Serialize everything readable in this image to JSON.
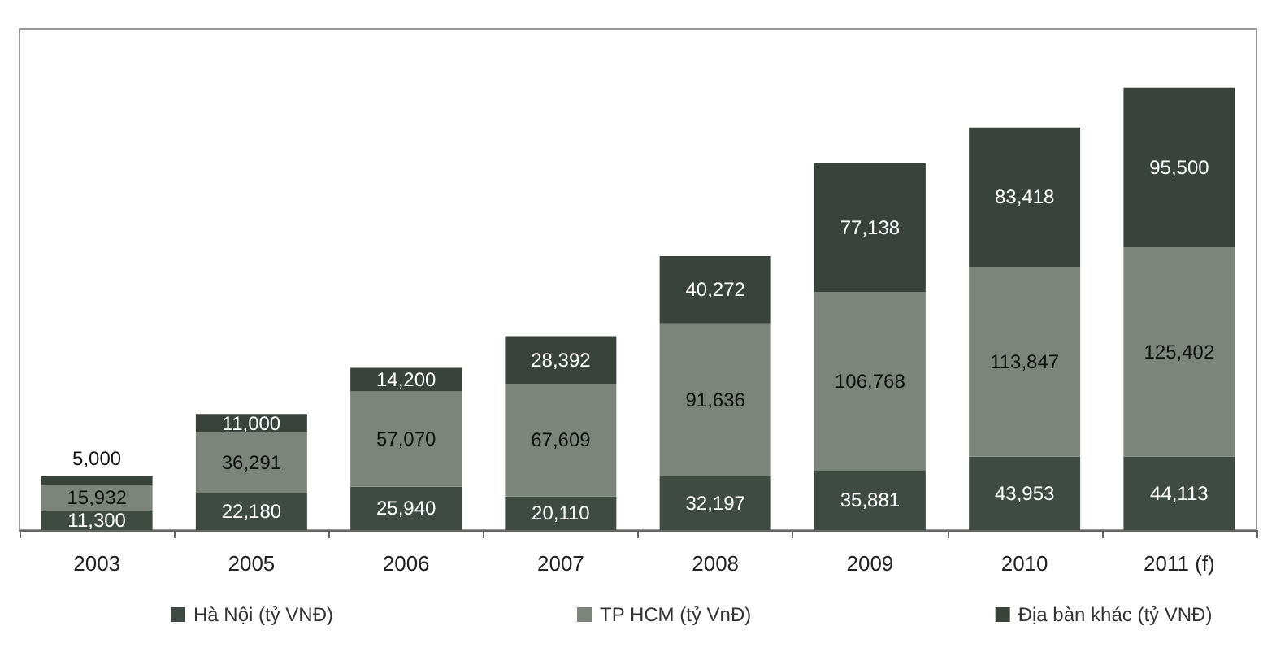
{
  "chart_data": {
    "type": "bar",
    "stacked": true,
    "legend": "bottom",
    "categories": [
      "2003",
      "2005",
      "2006",
      "2007",
      "2008",
      "2009",
      "2010",
      "2011 (f)"
    ],
    "series": [
      {
        "name": "Hà Nội (tỷ VNĐ)",
        "color": "#3f4a42",
        "values": [
          11300,
          22180,
          25940,
          20110,
          32197,
          35881,
          43953,
          44113
        ],
        "value_labels": [
          "11,300",
          "22,180",
          "25,940",
          "20,110",
          "32,197",
          "35,881",
          "43,953",
          "44,113"
        ]
      },
      {
        "name": "TP HCM (tỷ VnĐ)",
        "color": "#7c847c",
        "values": [
          15932,
          36291,
          57070,
          67609,
          91636,
          106768,
          113847,
          125402
        ],
        "value_labels": [
          "15,932",
          "36,291",
          "57,070",
          "67,609",
          "91,636",
          "106,768",
          "113,847",
          "125,402"
        ]
      },
      {
        "name": "Địa bàn khác (tỷ VNĐ)",
        "color": "#39423b",
        "values": [
          5000,
          11000,
          14200,
          28392,
          40272,
          77138,
          83418,
          95500
        ],
        "value_labels": [
          "5,000",
          "11,000",
          "14,200",
          "28,392",
          "40,272",
          "77,138",
          "83,418",
          "95,500"
        ]
      }
    ]
  }
}
